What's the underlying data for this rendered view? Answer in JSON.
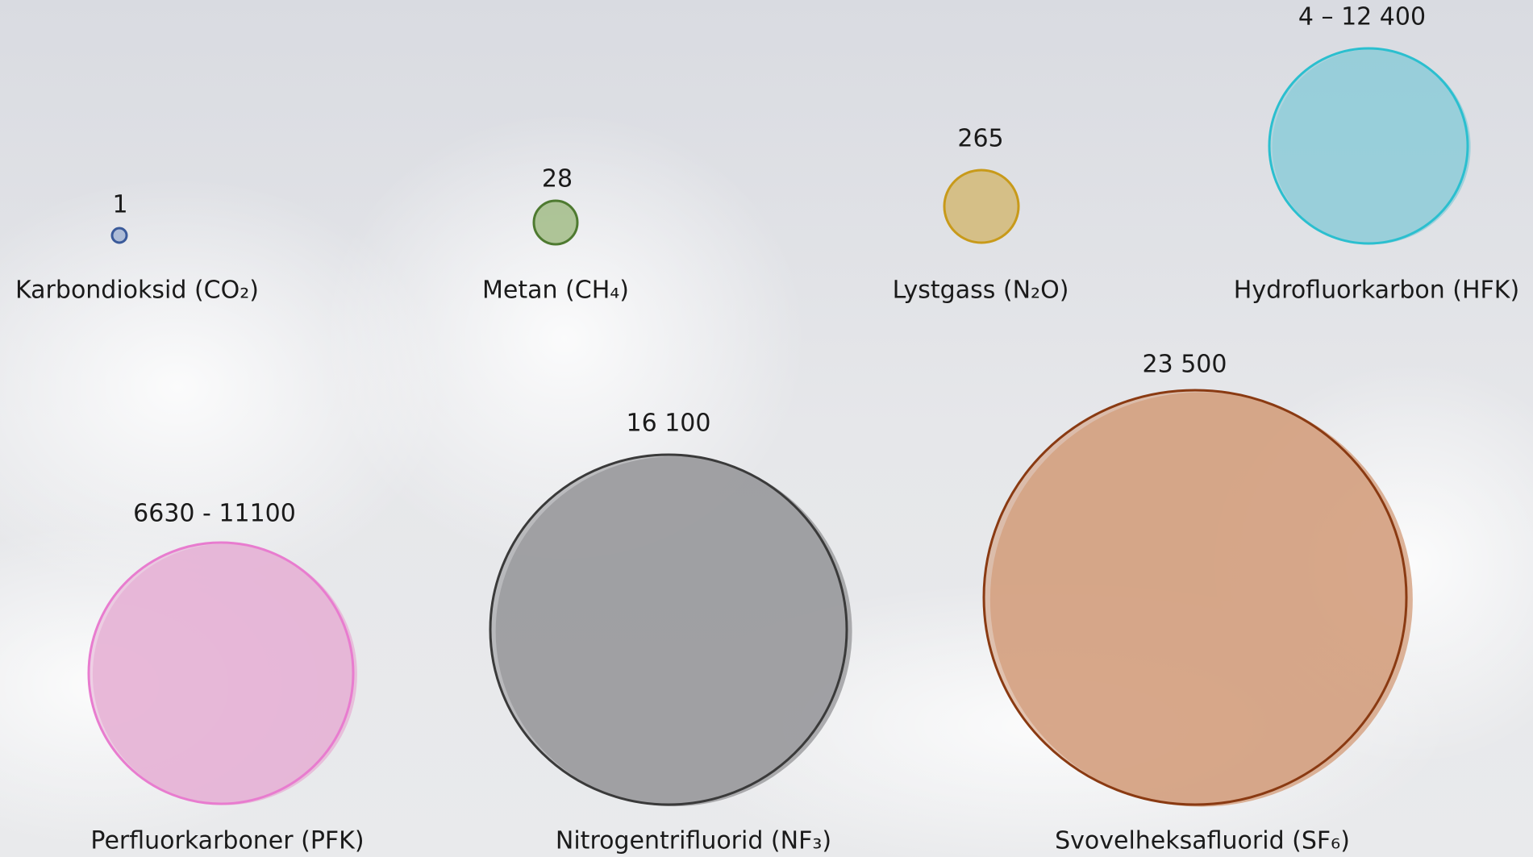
{
  "items": [
    {
      "value_label": "1",
      "name": "Karbondioksid (CO₂)"
    },
    {
      "value_label": "28",
      "name": "Metan (CH₄)"
    },
    {
      "value_label": "265",
      "name": "Lystgass (N₂O)"
    },
    {
      "value_label": "4 – 12 400",
      "name": "Hydrofluorkarbon (HFK)"
    },
    {
      "value_label": "6630 - 11100",
      "name": "Perfluorkarboner (PFK)"
    },
    {
      "value_label": "16 100",
      "name": "Nitrogentrifluorid (NF₃)"
    },
    {
      "value_label": "23 500",
      "name": "Svovelheksafluorid (SF₆)"
    }
  ]
}
